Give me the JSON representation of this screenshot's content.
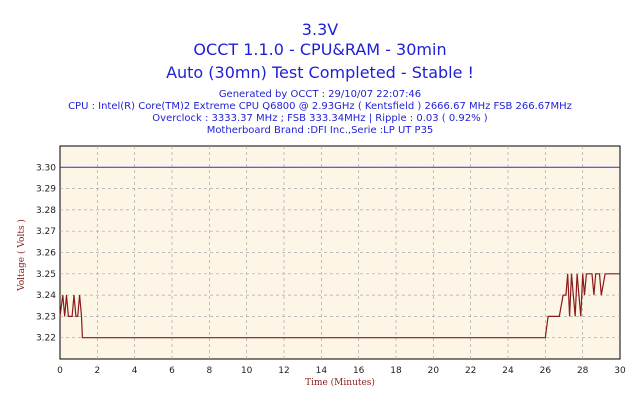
{
  "header": {
    "title": "3.3V",
    "subtitle1": "OCCT 1.1.0 - CPU&RAM - 30min",
    "subtitle2": "Auto (30mn) Test Completed - Stable !",
    "info": [
      "Generated by OCCT : 29/10/07 22:07:46",
      "CPU : Intel(R) Core(TM)2 Extreme CPU Q6800  @ 2.93GHz ( Kentsfield ) 2666.67 MHz FSB 266.67MHz",
      "Overclock : 3333.37 MHz ; FSB 333.34MHz | Ripple : 0.03 ( 0.92% )",
      "Motherboard Brand :DFI Inc.,Serie :LP UT P35"
    ]
  },
  "colors": {
    "plot_bg": "#fdf5e6",
    "grid": "#a9a9a9",
    "series": "#8b1a1a",
    "reference": "#3333cc",
    "title": "#1f1fd6"
  },
  "chart_data": {
    "type": "line",
    "title": "3.3V",
    "xlabel": "Time (Minutes)",
    "ylabel": "Voltage ( Volts )",
    "xlim": [
      0,
      30
    ],
    "ylim": [
      3.21,
      3.31
    ],
    "x_ticks": [
      0,
      2,
      4,
      6,
      8,
      10,
      12,
      14,
      16,
      18,
      20,
      22,
      24,
      26,
      28,
      30
    ],
    "y_ticks": [
      3.22,
      3.23,
      3.24,
      3.25,
      3.26,
      3.27,
      3.28,
      3.29,
      3.3
    ],
    "grid": true,
    "reference_line": {
      "y": 3.3
    },
    "series": [
      {
        "x": [
          0,
          0.15,
          0.25,
          0.35,
          0.45,
          0.55,
          0.65,
          0.75,
          0.85,
          0.95,
          1.05,
          1.15,
          1.2,
          1.3,
          1.4,
          26.0,
          26.15,
          26.35,
          26.55,
          26.75,
          26.95,
          27.1,
          27.2,
          27.3,
          27.4,
          27.5,
          27.6,
          27.7,
          27.8,
          27.9,
          28.0,
          28.1,
          28.2,
          28.3,
          28.4,
          28.5,
          28.6,
          28.7,
          28.8,
          28.9,
          29.0,
          29.2,
          29.5,
          29.8,
          30.0
        ],
        "y": [
          3.23,
          3.24,
          3.23,
          3.24,
          3.23,
          3.23,
          3.23,
          3.24,
          3.23,
          3.23,
          3.24,
          3.23,
          3.22,
          3.22,
          3.22,
          3.22,
          3.23,
          3.23,
          3.23,
          3.23,
          3.24,
          3.24,
          3.25,
          3.23,
          3.25,
          3.24,
          3.23,
          3.25,
          3.24,
          3.23,
          3.25,
          3.24,
          3.25,
          3.25,
          3.25,
          3.25,
          3.24,
          3.25,
          3.25,
          3.25,
          3.24,
          3.25,
          3.25,
          3.25,
          3.25
        ]
      }
    ]
  }
}
